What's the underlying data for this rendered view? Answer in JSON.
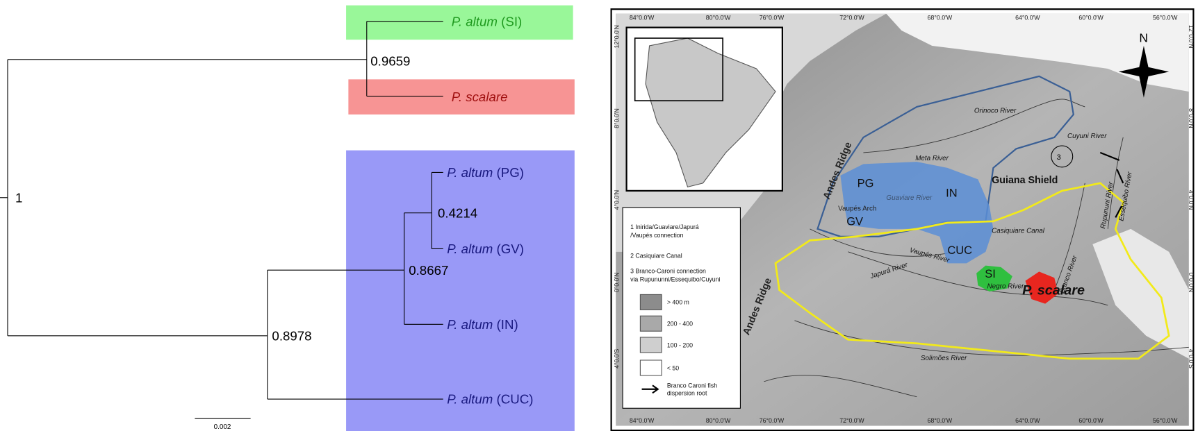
{
  "tree": {
    "tips": [
      {
        "species": "P. altum",
        "population": "(SI)"
      },
      {
        "species": "P. scalare",
        "population": null
      },
      {
        "species": "P. altum",
        "population": "(PG)"
      },
      {
        "species": "P. altum",
        "population": "(GV)"
      },
      {
        "species": "P. altum",
        "population": "(IN)"
      },
      {
        "species": "P. altum",
        "population": "(CUC)"
      }
    ],
    "supports": {
      "root": 1,
      "si_scalare": 0.9659,
      "pg_gv": 0.4214,
      "pg_gv_in": 0.8667,
      "altum_clade": 0.8978
    },
    "scale_bar": "0.002"
  },
  "map": {
    "longitudes": [
      "84°0.0'W",
      "80°0.0'W",
      "76°0.0'W",
      "72°0.0'W",
      "68°0.0'W",
      "64°0.0'W",
      "60°0.0'W",
      "56°0.0'W"
    ],
    "latitudes": [
      "12°0.0'N",
      "8°0.0'N",
      "4°0.0'N",
      "0°0.0'N",
      "4°0.0'S"
    ],
    "north": "N",
    "features": [
      "Andes Ridge",
      "Vaupés Arch",
      "Guiana Shield"
    ],
    "rivers": [
      "Orinoco River",
      "Meta River",
      "Guaviare River",
      "Casiquiare Canal",
      "Vaupés River",
      "Japurá River",
      "Negro River",
      "Solimões River",
      "Branco River",
      "Cuyuni River",
      "Rupununi River",
      "Essequibo River"
    ],
    "regions": [
      "PG",
      "IN",
      "GV",
      "CUC",
      "SI",
      "P. scalare"
    ],
    "marker": "3",
    "legend": {
      "notes": [
        "1 Inirida/Guaviare/Japurá",
        "/Vaupés connection",
        "2 Casiquiare Canal",
        "3 Branco-Caroni connection",
        "via Rupununni/Essequibo/Cuyuni"
      ],
      "elevation": [
        "> 400 m",
        "200 - 400",
        "100 - 200",
        "< 50"
      ],
      "arrow_lines": [
        "Branco Caroni fish",
        "dispersion root"
      ]
    }
  }
}
